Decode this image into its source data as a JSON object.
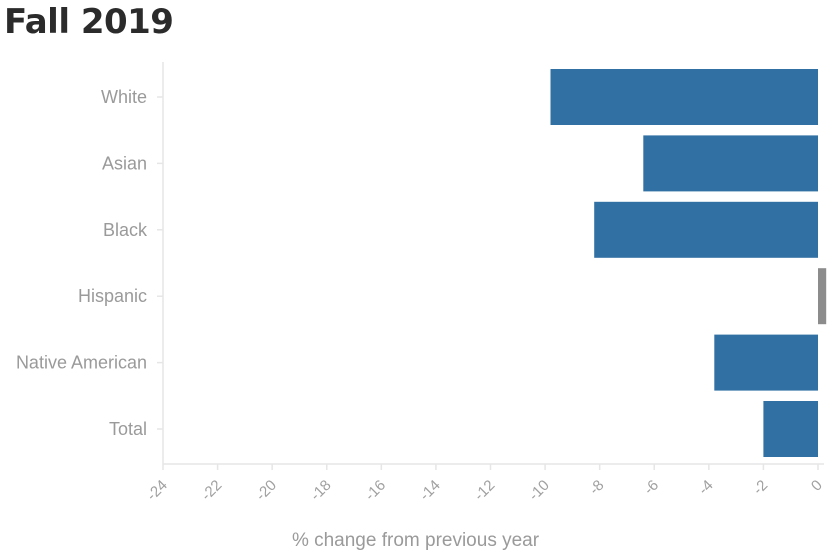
{
  "chart_data": {
    "type": "bar",
    "orientation": "horizontal",
    "title": "Fall 2019",
    "xlabel": "% change from previous year",
    "ylabel": "",
    "categories": [
      "White",
      "Asian",
      "Black",
      "Hispanic",
      "Native American",
      "Total"
    ],
    "values": [
      -9.8,
      -6.4,
      -8.2,
      0.3,
      -3.8,
      -2.0
    ],
    "xlim": [
      -24,
      0
    ],
    "xticks": [
      -24,
      -22,
      -20,
      -18,
      -16,
      -14,
      -12,
      -10,
      -8,
      -6,
      -4,
      -2,
      0
    ],
    "grid": false,
    "colors": {
      "negative": "#3170a3",
      "positive": "#8c8c8c",
      "axis": "#e6e6e6",
      "label": "#9a9a9a"
    }
  }
}
